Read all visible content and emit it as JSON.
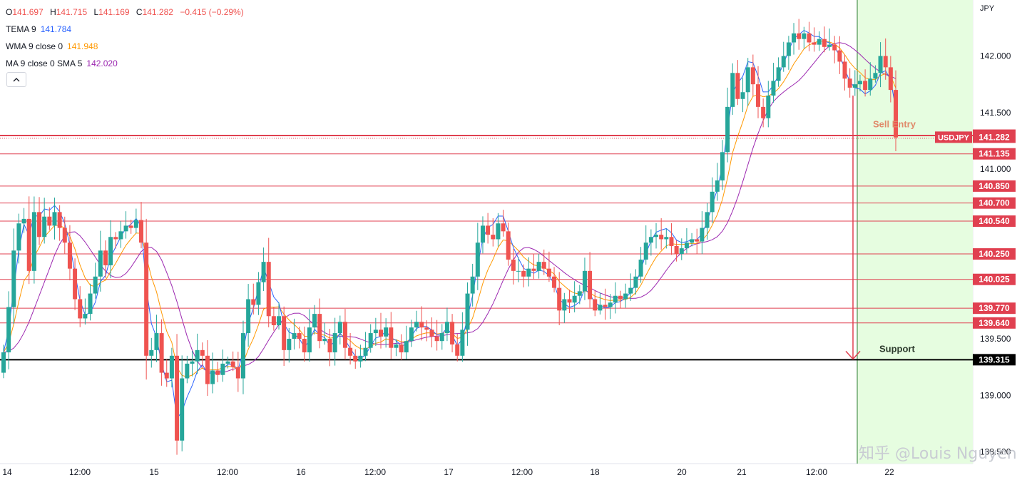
{
  "ohlc": {
    "o_label": "O",
    "o": "141.697",
    "h_label": "H",
    "h": "141.715",
    "l_label": "L",
    "l": "141.169",
    "c_label": "C",
    "c": "141.282",
    "change": "−0.415 (−0.29%)"
  },
  "indicators": [
    {
      "label": "TEMA 9",
      "value": "141.784",
      "color": "#2962ff"
    },
    {
      "label": "WMA 9 close 0",
      "value": "141.948",
      "color": "#ff9800"
    },
    {
      "label": "MA 9 close 0 SMA 5",
      "value": "142.020",
      "color": "#9c27b0"
    }
  ],
  "currency": "JPY",
  "annotations": {
    "sell_entry": "Sell Entry",
    "support": "Support"
  },
  "watermark": "知乎 @Louis Nguyen",
  "colors": {
    "up": "#26a69a",
    "down": "#ef5350",
    "level": "#e04050",
    "support": "#000000",
    "zone": "#e6fde0",
    "zone_border": "#2e7d32",
    "tema": "#2962ff",
    "wma": "#ff9800",
    "ma": "#9c27b0",
    "annotation": "#e08a6a"
  },
  "chart_data": {
    "type": "candlestick",
    "symbol": "USDJPY",
    "y_ticks": [
      "139.000",
      "139.500",
      "141.000",
      "141.500",
      "142.000",
      "138.500"
    ],
    "y_tick_values": [
      139.0,
      139.5,
      141.0,
      141.5,
      142.0,
      138.5
    ],
    "x_ticks": [
      "14",
      "12:00",
      "15",
      "12:00",
      "16",
      "12:00",
      "17",
      "12:00",
      "18",
      "20",
      "21",
      "12:00",
      "22"
    ],
    "ylim": [
      138.15,
      142.5
    ],
    "levels": [
      {
        "label": "141.300",
        "value": 141.3
      },
      {
        "label": "141.135",
        "value": 141.135
      },
      {
        "label": "140.850",
        "value": 140.85
      },
      {
        "label": "140.700",
        "value": 140.7
      },
      {
        "label": "140.540",
        "value": 140.54
      },
      {
        "label": "140.250",
        "value": 140.25
      },
      {
        "label": "140.025",
        "value": 140.025
      },
      {
        "label": "139.770",
        "value": 139.77
      },
      {
        "label": "139.640",
        "value": 139.64
      }
    ],
    "support_level": {
      "label": "139.315",
      "value": 139.315
    },
    "current_price": {
      "symbol": "USDJPY",
      "label": "141.282",
      "value": 141.282
    },
    "closes": [
      139.38,
      139.78,
      140.28,
      140.52,
      140.56,
      140.1,
      140.62,
      140.4,
      140.58,
      140.5,
      140.62,
      140.48,
      140.35,
      140.12,
      139.85,
      139.68,
      139.72,
      139.9,
      140.05,
      140.28,
      140.15,
      140.4,
      140.38,
      140.45,
      140.5,
      140.48,
      140.55,
      140.35,
      139.35,
      139.4,
      139.55,
      139.2,
      139.15,
      139.35,
      138.6,
      139.15,
      139.28,
      139.3,
      139.4,
      139.35,
      139.1,
      139.22,
      139.18,
      139.28,
      139.3,
      139.25,
      139.15,
      139.55,
      139.85,
      139.8,
      140.0,
      140.18,
      139.7,
      139.62,
      139.7,
      139.4,
      139.5,
      139.55,
      139.5,
      139.38,
      139.6,
      139.72,
      139.48,
      139.5,
      139.38,
      139.55,
      139.65,
      139.42,
      139.35,
      139.3,
      139.35,
      139.42,
      139.55,
      139.58,
      139.52,
      139.6,
      139.42,
      139.45,
      139.38,
      139.48,
      139.6,
      139.65,
      139.6,
      139.58,
      139.52,
      139.48,
      139.55,
      139.65,
      139.45,
      139.35,
      139.58,
      139.9,
      140.05,
      140.35,
      140.5,
      140.42,
      140.38,
      140.52,
      140.45,
      140.2,
      140.1,
      140.1,
      140.05,
      140.12,
      140.1,
      140.18,
      140.12,
      140.05,
      139.95,
      139.75,
      139.85,
      139.82,
      139.88,
      139.92,
      140.1,
      139.85,
      139.75,
      139.8,
      139.78,
      139.82,
      139.88,
      139.85,
      139.9,
      139.95,
      140.05,
      140.2,
      140.35,
      140.4,
      140.42,
      140.38,
      140.4,
      140.32,
      140.25,
      140.3,
      140.35,
      140.38,
      140.36,
      140.48,
      140.62,
      140.8,
      140.9,
      141.15,
      141.55,
      141.85,
      141.62,
      141.68,
      141.9,
      141.75,
      141.55,
      141.45,
      141.65,
      141.78,
      141.9,
      142.0,
      142.12,
      142.2,
      142.15,
      142.2,
      142.12,
      142.1,
      142.15,
      142.08,
      142.1,
      142.05,
      141.95,
      141.8,
      141.72,
      141.75,
      141.78,
      141.7,
      141.8,
      141.85,
      142.0,
      141.9,
      141.7,
      141.28
    ]
  }
}
